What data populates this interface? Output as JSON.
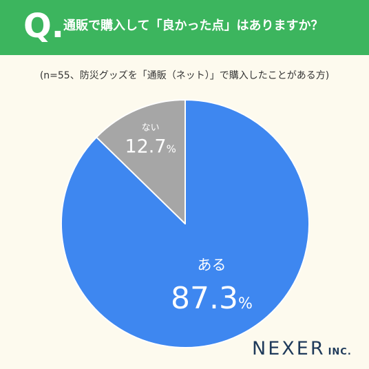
{
  "header": {
    "q_letter": "Q.",
    "question": "通販で購入して「良かった点」はありますか？",
    "background_color": "#3cb55e"
  },
  "note": "(n=55、防災グッズを「通販（ネット）」で購入したことがある方)",
  "chart_data": {
    "type": "pie",
    "title": "",
    "slices": [
      {
        "label": "ある",
        "value": 87.3,
        "value_text": "87.3",
        "unit": "%",
        "color": "#3e87f0"
      },
      {
        "label": "ない",
        "value": 12.7,
        "value_text": "12.7",
        "unit": "%",
        "color": "#a6a6a6"
      }
    ],
    "start_angle_deg": 0,
    "direction": "clockwise",
    "border_color": "#ffffff",
    "legend": "none"
  },
  "logo": {
    "main": "NEXER",
    "sub": "INC."
  }
}
